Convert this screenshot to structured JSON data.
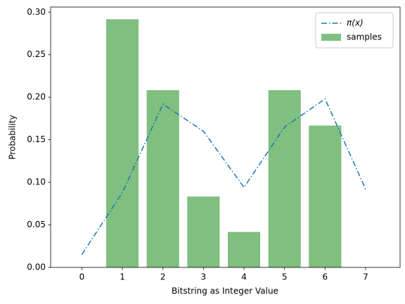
{
  "chart_data": {
    "type": "bar",
    "xlabel": "Bitstring as Integer Value",
    "ylabel": "Probability",
    "x": [
      0,
      1,
      2,
      3,
      4,
      5,
      6,
      7
    ],
    "series": [
      {
        "name": "π(x)",
        "type": "line",
        "linestyle": "dashdot",
        "color": "#1f77b4",
        "values": [
          0.015,
          0.088,
          0.192,
          0.16,
          0.094,
          0.165,
          0.198,
          0.092
        ]
      },
      {
        "name": "samples",
        "type": "bar",
        "color": "#008000",
        "alpha": 0.5,
        "values": [
          0,
          0.2917,
          0.2083,
          0.0833,
          0.0417,
          0.2083,
          0.1667,
          0
        ]
      }
    ],
    "xlim": [
      -0.77,
      7.85
    ],
    "xticks": [
      0,
      1,
      2,
      3,
      4,
      5,
      6,
      7
    ],
    "ylim": [
      0,
      0.306
    ],
    "yticks": [
      {
        "value": 0,
        "label": "0.00"
      },
      {
        "value": 0.05,
        "label": "0.05"
      },
      {
        "value": 0.1,
        "label": "0.10"
      },
      {
        "value": 0.15,
        "label": "0.15"
      },
      {
        "value": 0.2,
        "label": "0.20"
      },
      {
        "value": 0.25,
        "label": "0.25"
      },
      {
        "value": 0.3,
        "label": "0.30"
      }
    ],
    "legend": "upper right"
  }
}
